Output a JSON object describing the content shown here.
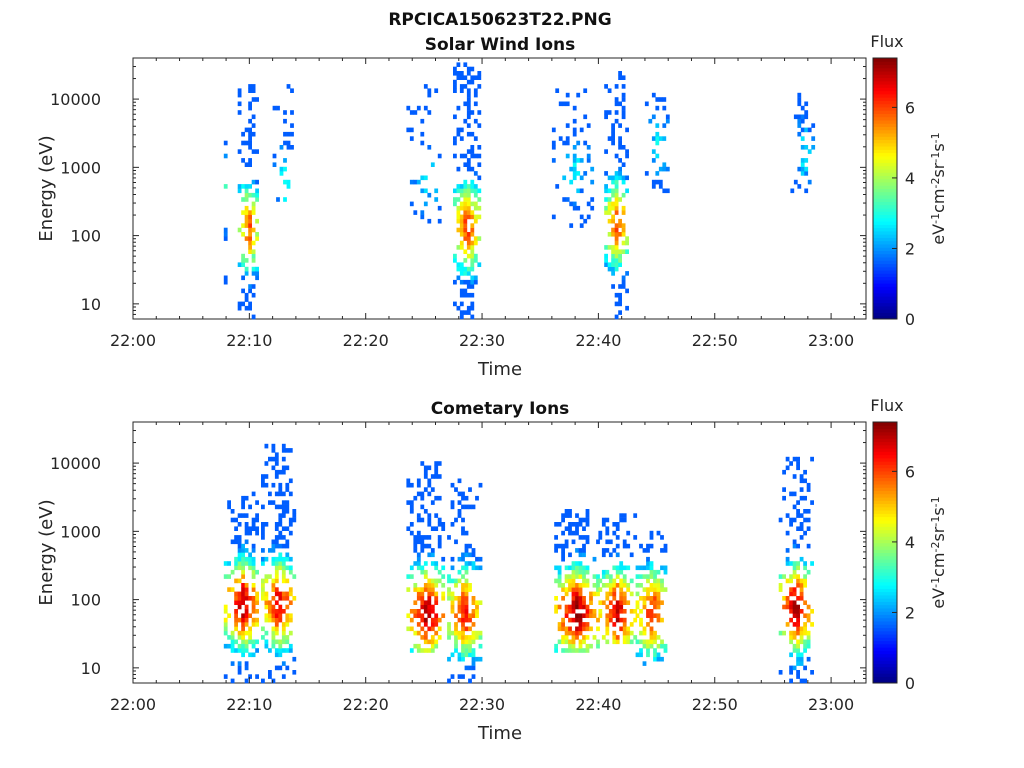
{
  "figure_title": "RPCICA150623T22.PNG",
  "chart_data": [
    {
      "type": "heatmap",
      "title": "Solar Wind Ions",
      "xlabel": "Time",
      "ylabel": "Energy (eV)",
      "xticks": [
        "22:00",
        "22:10",
        "22:20",
        "22:30",
        "22:40",
        "22:50",
        "23:00"
      ],
      "xlim_minutes": [
        0,
        63
      ],
      "ylim": [
        6,
        40000
      ],
      "yscale": "log",
      "yticks": [
        10,
        100,
        1000,
        10000
      ],
      "colorbar": {
        "title": "Flux",
        "label": "eV^-1 cm^-2 sr^-1 s^-1",
        "ticks": [
          0,
          2,
          4,
          6
        ],
        "range": [
          0,
          7.4
        ],
        "colormap": "jet"
      },
      "clusters": [
        {
          "t_start": 7.5,
          "t_end": 8.0,
          "e_min": 15,
          "e_max": 14000,
          "peak_flux": 3.5,
          "peak_energy": 400,
          "density": 0.25
        },
        {
          "t_start": 9.0,
          "t_end": 10.6,
          "e_min": 6,
          "e_max": 15000,
          "peak_flux": 6.0,
          "peak_energy": 120,
          "density": 0.75
        },
        {
          "t_start": 12.0,
          "t_end": 13.8,
          "e_min": 300,
          "e_max": 15000,
          "peak_flux": 2.7,
          "peak_energy": 600,
          "density": 0.4
        },
        {
          "t_start": 23.5,
          "t_end": 26.5,
          "e_min": 150,
          "e_max": 17000,
          "peak_flux": 2.6,
          "peak_energy": 600,
          "density": 0.18
        },
        {
          "t_start": 27.5,
          "t_end": 29.7,
          "e_min": 6,
          "e_max": 30000,
          "peak_flux": 6.2,
          "peak_energy": 120,
          "density": 0.8
        },
        {
          "t_start": 36.0,
          "t_end": 39.5,
          "e_min": 100,
          "e_max": 15000,
          "peak_flux": 2.6,
          "peak_energy": 800,
          "density": 0.25
        },
        {
          "t_start": 40.5,
          "t_end": 42.5,
          "e_min": 6,
          "e_max": 25000,
          "peak_flux": 6.0,
          "peak_energy": 140,
          "density": 0.8
        },
        {
          "t_start": 44.0,
          "t_end": 46.0,
          "e_min": 400,
          "e_max": 13000,
          "peak_flux": 2.8,
          "peak_energy": 2000,
          "density": 0.35
        },
        {
          "t_start": 56.5,
          "t_end": 58.5,
          "e_min": 400,
          "e_max": 12000,
          "peak_flux": 2.6,
          "peak_energy": 1500,
          "density": 0.35
        }
      ]
    },
    {
      "type": "heatmap",
      "title": "Cometary Ions",
      "xlabel": "Time",
      "ylabel": "Energy (eV)",
      "xticks": [
        "22:00",
        "22:10",
        "22:20",
        "22:30",
        "22:40",
        "22:50",
        "23:00"
      ],
      "xlim_minutes": [
        0,
        63
      ],
      "ylim": [
        6,
        40000
      ],
      "yscale": "log",
      "yticks": [
        10,
        100,
        1000,
        10000
      ],
      "colorbar": {
        "title": "Flux",
        "label": "eV^-1 cm^-2 sr^-1 s^-1",
        "ticks": [
          0,
          2,
          4,
          6
        ],
        "range": [
          0,
          7.4
        ],
        "colormap": "jet"
      },
      "clusters": [
        {
          "t_start": 7.8,
          "t_end": 10.8,
          "e_min": 6,
          "e_max": 3500,
          "peak_flux": 7.0,
          "peak_energy": 80,
          "density": 0.75
        },
        {
          "t_start": 11.0,
          "t_end": 13.8,
          "e_min": 6,
          "e_max": 17000,
          "peak_flux": 6.8,
          "peak_energy": 80,
          "density": 0.75
        },
        {
          "t_start": 23.5,
          "t_end": 26.8,
          "e_min": 15,
          "e_max": 10000,
          "peak_flux": 7.2,
          "peak_energy": 60,
          "density": 0.75
        },
        {
          "t_start": 27.0,
          "t_end": 29.8,
          "e_min": 6,
          "e_max": 6000,
          "peak_flux": 6.5,
          "peak_energy": 60,
          "density": 0.7
        },
        {
          "t_start": 36.2,
          "t_end": 39.8,
          "e_min": 15,
          "e_max": 2000,
          "peak_flux": 7.3,
          "peak_energy": 60,
          "density": 0.8
        },
        {
          "t_start": 40.0,
          "t_end": 43.0,
          "e_min": 20,
          "e_max": 1600,
          "peak_flux": 7.0,
          "peak_energy": 60,
          "density": 0.75
        },
        {
          "t_start": 43.2,
          "t_end": 45.8,
          "e_min": 10,
          "e_max": 1000,
          "peak_flux": 6.5,
          "peak_energy": 60,
          "density": 0.7
        },
        {
          "t_start": 55.5,
          "t_end": 58.2,
          "e_min": 6,
          "e_max": 11000,
          "peak_flux": 7.2,
          "peak_energy": 70,
          "density": 0.75
        }
      ]
    }
  ]
}
